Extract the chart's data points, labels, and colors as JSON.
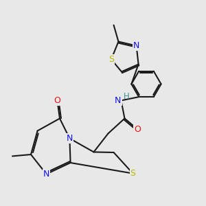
{
  "bg": "#e8e8e8",
  "bond_color": "#1a1a1a",
  "bond_lw": 1.5,
  "atom_colors": {
    "N": "#1010ee",
    "O": "#ee1010",
    "S": "#b8b800",
    "H": "#3a9090"
  },
  "afs": 9.0,
  "figsize": [
    3.0,
    3.0
  ],
  "dpi": 100
}
